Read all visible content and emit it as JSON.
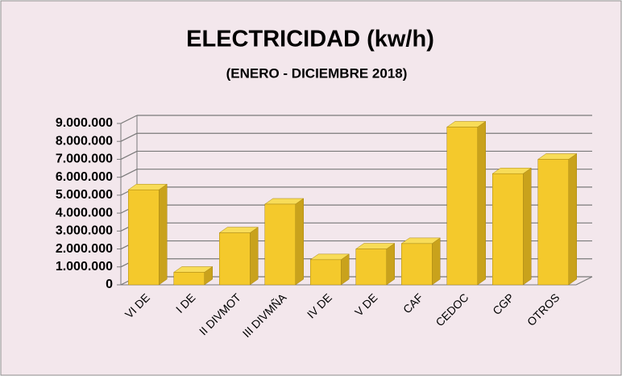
{
  "chart_data": {
    "type": "bar3d",
    "title": "ELECTRICIDAD (kw/h)",
    "subtitle": "(ENERO - DICIEMBRE 2018)",
    "categories": [
      "VI DE",
      "I DE",
      "II DIVMOT",
      "III DIVMÑA",
      "IV DE",
      "V DE",
      "CAF",
      "CEDOC",
      "CGP",
      "OTROS"
    ],
    "values": [
      5300000,
      700000,
      2900000,
      4500000,
      1400000,
      2000000,
      2300000,
      8800000,
      6200000,
      7000000
    ],
    "color": "#f4c92c",
    "ylim": [
      0,
      9000000
    ],
    "yticks": [
      0,
      {
        "value": 1000000,
        "label": "1.000.000"
      },
      {
        "value": 2000000,
        "label": "2.000.000"
      },
      {
        "value": 3000000,
        "label": "3.000.000"
      },
      {
        "value": 4000000,
        "label": "4.000.000"
      },
      {
        "value": 5000000,
        "label": "5.000.000"
      },
      {
        "value": 6000000,
        "label": "6.000.000"
      },
      {
        "value": 7000000,
        "label": "7.000.000"
      },
      {
        "value": 8000000,
        "label": "8.000.000"
      },
      {
        "value": 9000000,
        "label": "9.000.000"
      }
    ],
    "grid": true
  }
}
